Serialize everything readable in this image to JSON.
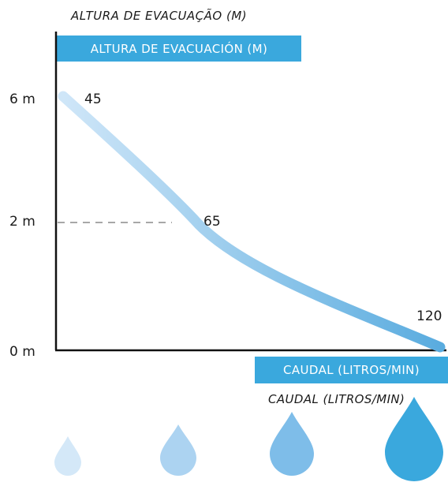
{
  "titles": {
    "y_pt": "ALTURA DE EVACUAÇÃO (M)",
    "y_es": "ALTURA DE EVACUACIÓN (M)",
    "x_es": "CAUDAL (LITROS/MIN)",
    "x_pt": "CAUDAL (LITROS/MIN)"
  },
  "colors": {
    "accent": "#3aa8dd",
    "curve_light": "#cfe6f8",
    "curve_dark": "#5aacdf",
    "drops": [
      "#d4e8f8",
      "#acd3f1",
      "#7ebde9",
      "#3aa8dd"
    ]
  },
  "icons": [
    "water-drop-icon",
    "water-drop-icon",
    "water-drop-icon",
    "water-drop-icon"
  ],
  "chart_data": {
    "type": "line",
    "title": "",
    "ylabel": "ALTURA DE EVACUACIÓN (M)",
    "xlabel": "CAUDAL (LITROS/MIN)",
    "yticks": [
      "6 m",
      "2 m",
      "0 m"
    ],
    "y_values": [
      6,
      2,
      0
    ],
    "series": [
      {
        "x": [
          45,
          65,
          120
        ],
        "y": [
          6,
          2,
          0
        ]
      }
    ],
    "data_labels": [
      "45",
      "65",
      "120"
    ],
    "reference_line": {
      "y": 2,
      "style": "dashed"
    },
    "grid": false,
    "legend": "none"
  }
}
